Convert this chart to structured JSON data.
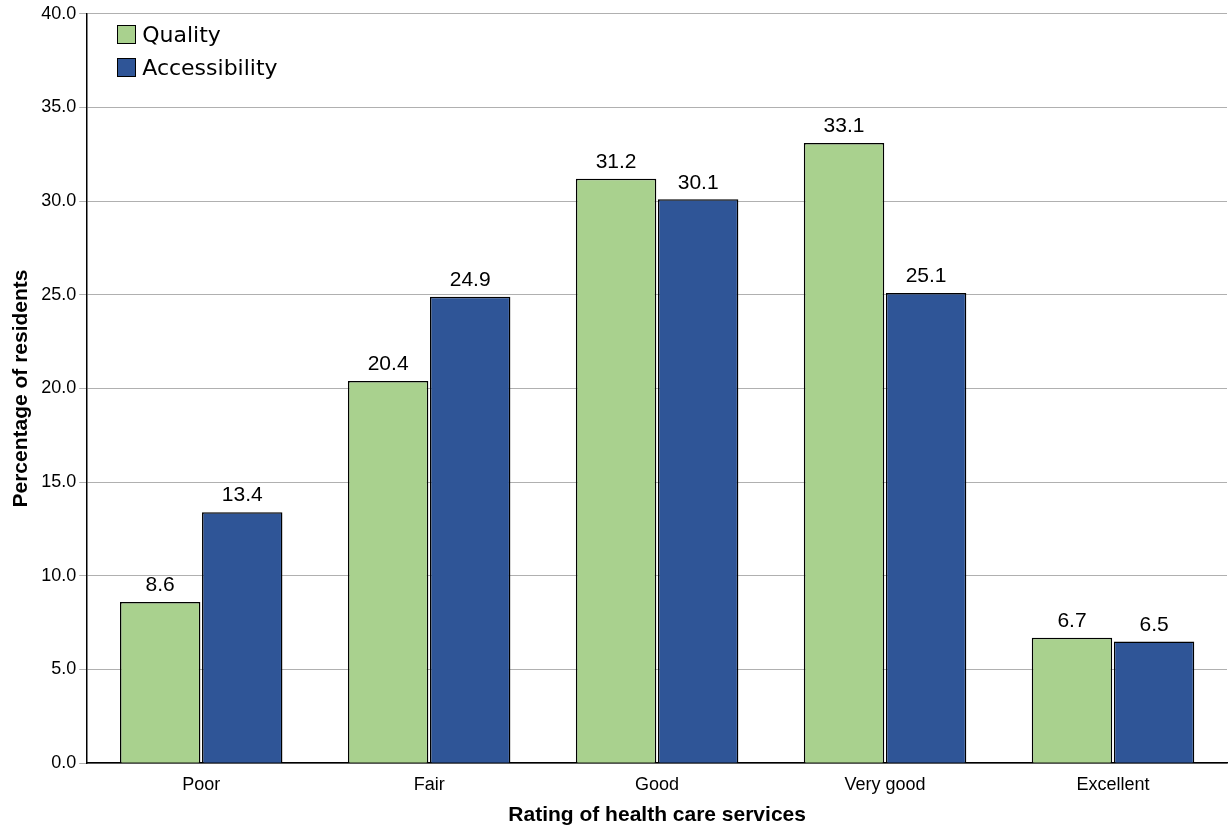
{
  "chart_data": {
    "type": "bar",
    "xlabel": "Rating of health care services",
    "ylabel": "Percentage of residents",
    "categories": [
      "Poor",
      "Fair",
      "Good",
      "Very good",
      "Excellent"
    ],
    "series": [
      {
        "name": "Quality",
        "color": "#a9d18e",
        "values": [
          8.6,
          20.4,
          31.2,
          33.1,
          6.7
        ]
      },
      {
        "name": "Accessibility",
        "color": "#2f5597",
        "values": [
          13.4,
          24.9,
          30.1,
          25.1,
          6.5
        ]
      }
    ],
    "ylim": [
      0,
      40
    ],
    "yticks": [
      {
        "value": 0,
        "label": "0.0"
      },
      {
        "value": 5,
        "label": "5.0"
      },
      {
        "value": 10,
        "label": "10.0"
      },
      {
        "value": 15,
        "label": "15.0"
      },
      {
        "value": 20,
        "label": "20.0"
      },
      {
        "value": 25,
        "label": "25.0"
      },
      {
        "value": 30,
        "label": "30.0"
      },
      {
        "value": 35,
        "label": "35.0"
      },
      {
        "value": 40,
        "label": "40.0"
      }
    ],
    "grid": "y",
    "legend": "top left",
    "data_labels": true
  }
}
